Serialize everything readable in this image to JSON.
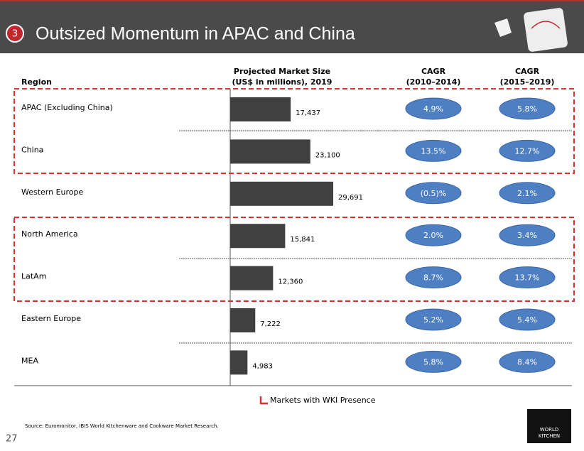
{
  "header": {
    "number": "3",
    "title": "Outsized Momentum in APAC and China"
  },
  "columns": {
    "region": "Region",
    "market": [
      "Projected Market Size",
      "(US$ in millions), 2019"
    ],
    "cagr": [
      [
        "CAGR",
        "(2010–2014)"
      ],
      [
        "CAGR",
        "(2015–2019)"
      ]
    ]
  },
  "chart_data": {
    "type": "bar",
    "categories": [
      "APAC (Excluding China)",
      "China",
      "Western Europe",
      "North America",
      "LatAm",
      "Eastern Europe",
      "MEA"
    ],
    "values": [
      17437,
      23100,
      29691,
      15841,
      12360,
      7222,
      4983
    ],
    "value_labels": [
      "17,437",
      "23,100",
      "29,691",
      "15,841",
      "12,360",
      "7,222",
      "4,983"
    ],
    "color": "#404040"
  },
  "cagr": [
    [
      "4.9%",
      "5.8%"
    ],
    [
      "13.5%",
      "12.7%"
    ],
    [
      "(0.5)%",
      "2.1%"
    ],
    [
      "2.0%",
      "3.4%"
    ],
    [
      "8.7%",
      "13.7%"
    ],
    [
      "5.2%",
      "5.4%"
    ],
    [
      "5.8%",
      "8.4%"
    ]
  ],
  "legend": "Markets with WKI Presence",
  "source": "Source:  Euromonitor, IBIS World Kitchenware and Cookware Market Research.",
  "page": "27",
  "logo": [
    "WORLD",
    "KITCHEN"
  ]
}
